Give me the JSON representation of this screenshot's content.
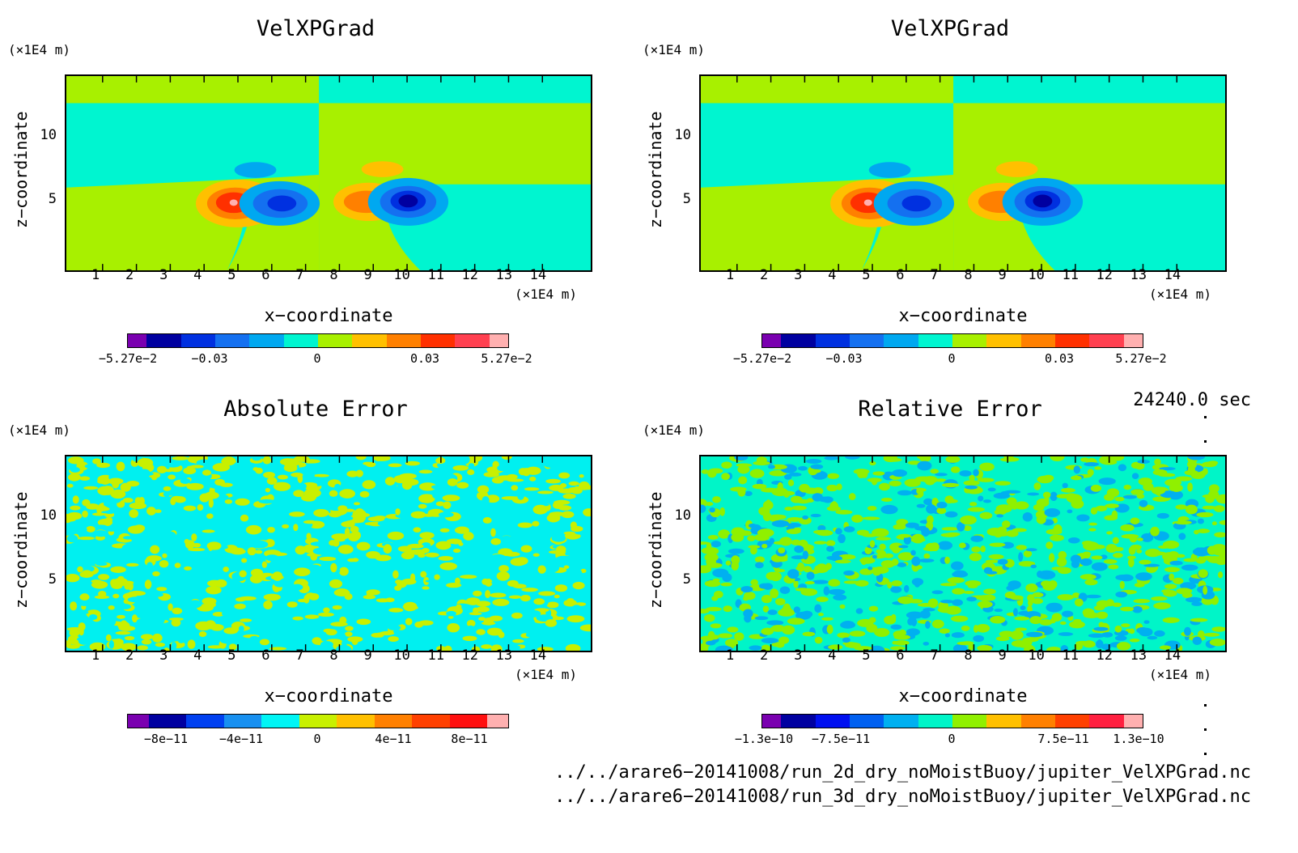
{
  "panels": [
    {
      "title": "VelXPGrad",
      "unit_top": "(×1E4 m)",
      "unit_right": "(×1E4 m)",
      "xlabel": "x−coordinate",
      "ylabel": "z−coordinate",
      "cbar_labels": [
        "−5.27e−2",
        "−0.03",
        "0",
        "0.03",
        "5.27e−2"
      ]
    },
    {
      "title": "VelXPGrad",
      "unit_top": "(×1E4 m)",
      "unit_right": "(×1E4 m)",
      "xlabel": "x−coordinate",
      "ylabel": "z−coordinate",
      "cbar_labels": [
        "−5.27e−2",
        "−0.03",
        "0",
        "0.03",
        "5.27e−2"
      ]
    },
    {
      "title": "Absolute Error",
      "unit_top": "(×1E4 m)",
      "unit_right": "(×1E4 m)",
      "xlabel": "x−coordinate",
      "ylabel": "z−coordinate",
      "cbar_labels": [
        "−8e−11",
        "−4e−11",
        "0",
        "4e−11",
        "8e−11"
      ]
    },
    {
      "title": "Relative Error",
      "unit_top": "(×1E4 m)",
      "unit_right": "(×1E4 m)",
      "xlabel": "x−coordinate",
      "ylabel": "z−coordinate",
      "cbar_labels": [
        "−1.3e−10",
        "−7.5e−11",
        "0",
        "7.5e−11",
        "1.3e−10"
      ]
    }
  ],
  "x_ticks": [
    "1",
    "2",
    "3",
    "4",
    "5",
    "6",
    "7",
    "8",
    "9",
    "10",
    "11",
    "12",
    "13",
    "14"
  ],
  "y_ticks": [
    "5",
    "10"
  ],
  "time_label": "24240.0 sec",
  "files": [
    "../../arare6−20141008/run_2d_dry_noMoistBuoy/jupiter_VelXPGrad.nc",
    "../../arare6−20141008/run_3d_dry_noMoistBuoy/jupiter_VelXPGrad.nc"
  ],
  "colors": {
    "scale_vel": [
      "#7a00b0",
      "#0000a0",
      "#0030e0",
      "#1470f0",
      "#00a8f0",
      "#00f5d0",
      "#a8f000",
      "#ffc000",
      "#ff8000",
      "#ff3000",
      "#ff4050",
      "#ffb0b0"
    ],
    "scale_abs": [
      "#7a00b0",
      "#0000a0",
      "#0040f0",
      "#1890f0",
      "#00f5f5",
      "#c8f000",
      "#ffc000",
      "#ff8000",
      "#ff4000",
      "#ff1010",
      "#ffb0b0"
    ],
    "scale_rel": [
      "#7a00b0",
      "#0000a0",
      "#0010f0",
      "#0060f0",
      "#00b0f0",
      "#00f5c8",
      "#90f000",
      "#ffc000",
      "#ff8000",
      "#ff4000",
      "#ff2040",
      "#ffb0b0"
    ]
  },
  "chart_data": [
    {
      "type": "heatmap",
      "title": "VelXPGrad",
      "xlabel": "x−coordinate",
      "ylabel": "z−coordinate",
      "x_unit": "×1E4 m",
      "y_unit": "×1E4 m",
      "xlim": [
        0,
        15
      ],
      "ylim": [
        0,
        15
      ],
      "colorbar": {
        "min": -0.0527,
        "max": 0.0527,
        "ticks": [
          -0.0527,
          -0.03,
          0,
          0.03,
          0.0527
        ]
      }
    },
    {
      "type": "heatmap",
      "title": "VelXPGrad",
      "xlabel": "x−coordinate",
      "ylabel": "z−coordinate",
      "x_unit": "×1E4 m",
      "y_unit": "×1E4 m",
      "xlim": [
        0,
        15
      ],
      "ylim": [
        0,
        15
      ],
      "colorbar": {
        "min": -0.0527,
        "max": 0.0527,
        "ticks": [
          -0.0527,
          -0.03,
          0,
          0.03,
          0.0527
        ]
      }
    },
    {
      "type": "heatmap",
      "title": "Absolute Error",
      "xlabel": "x−coordinate",
      "ylabel": "z−coordinate",
      "x_unit": "×1E4 m",
      "y_unit": "×1E4 m",
      "xlim": [
        0,
        15
      ],
      "ylim": [
        0,
        15
      ],
      "colorbar": {
        "ticks": [
          -8e-11,
          -4e-11,
          0,
          4e-11,
          8e-11
        ]
      }
    },
    {
      "type": "heatmap",
      "title": "Relative Error",
      "xlabel": "x−coordinate",
      "ylabel": "z−coordinate",
      "x_unit": "×1E4 m",
      "y_unit": "×1E4 m",
      "xlim": [
        0,
        15
      ],
      "ylim": [
        0,
        15
      ],
      "colorbar": {
        "ticks": [
          -1.3e-10,
          -7.5e-11,
          0,
          7.5e-11,
          1.3e-10
        ]
      }
    }
  ]
}
